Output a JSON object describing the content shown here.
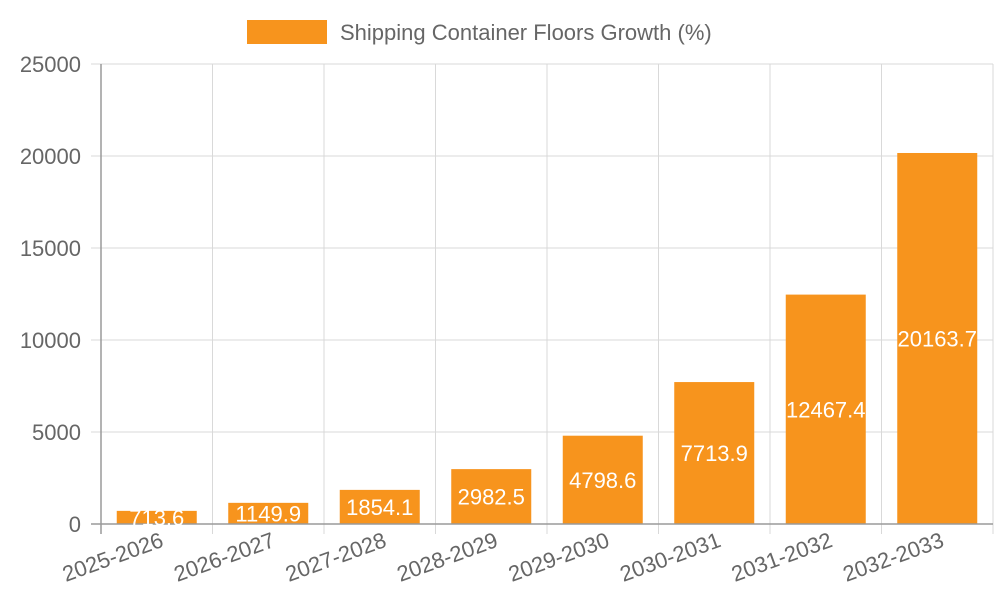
{
  "chart_data": {
    "type": "bar",
    "title": "",
    "xlabel": "",
    "ylabel": "",
    "categories": [
      "2025-2026",
      "2026-2027",
      "2027-2028",
      "2028-2029",
      "2029-2030",
      "2030-2031",
      "2031-2032",
      "2032-2033"
    ],
    "series": [
      {
        "name": "Shipping Container Floors Growth (%)",
        "values": [
          713.6,
          1149.9,
          1854.1,
          2982.5,
          4798.6,
          7713.9,
          12467.4,
          20163.7
        ],
        "color": "#f7941d"
      }
    ],
    "data_labels": [
      "713.6",
      "1149.9",
      "1854.1",
      "2982.5",
      "4798.6",
      "7713.9",
      "12467.4",
      "20163.7"
    ],
    "ylim": [
      0,
      25000
    ],
    "yticks": [
      "0",
      "5000",
      "10000",
      "15000",
      "20000",
      "25000"
    ],
    "grid": true,
    "legend_position": "top-center"
  }
}
